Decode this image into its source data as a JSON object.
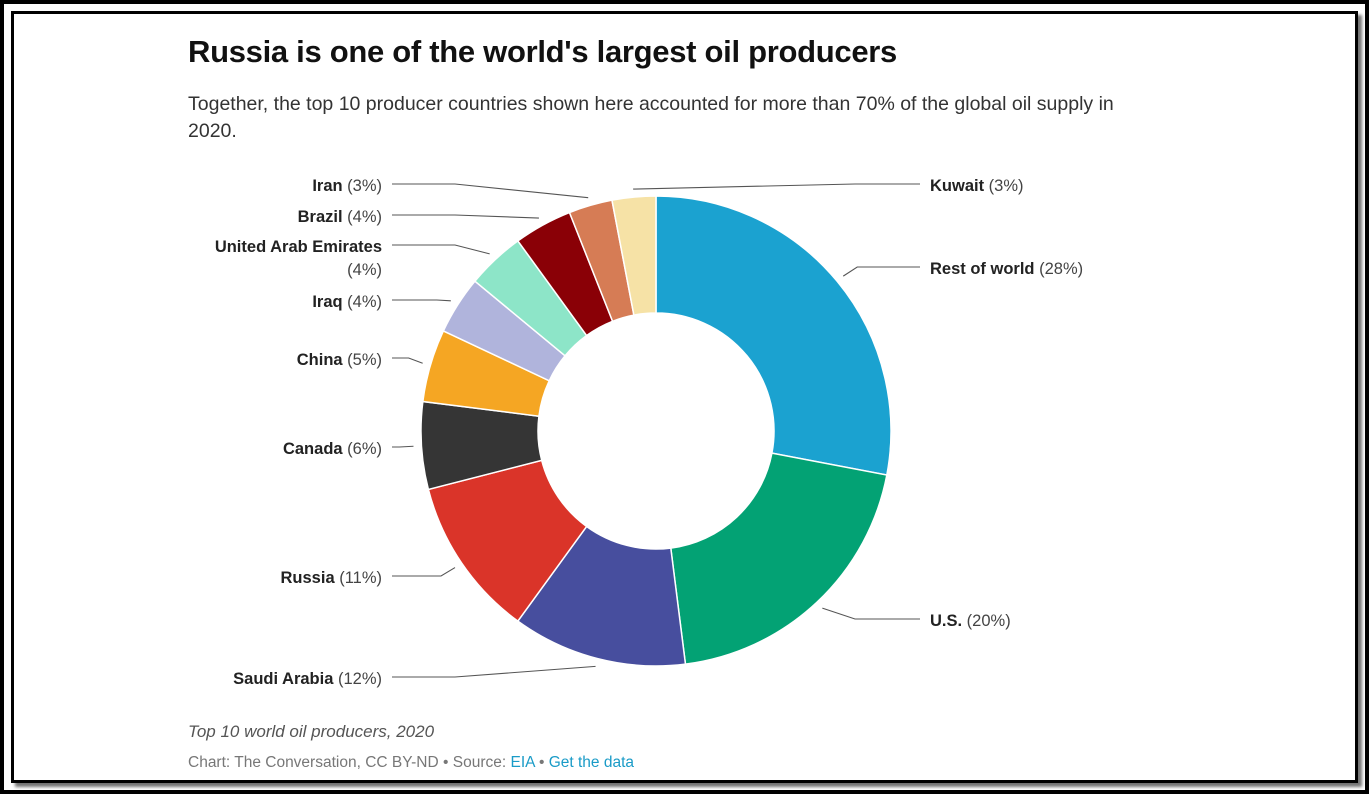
{
  "title": "Russia is one of the world's largest oil producers",
  "subtitle": "Together, the top 10 producer countries shown here accounted for more than 70% of the global oil supply in 2020.",
  "caption": "Top 10 world oil producers, 2020",
  "source": {
    "prefix": "Chart: The Conversation, CC BY-ND",
    "separator": "•",
    "source_label": "Source:",
    "source_link": "EIA",
    "data_link": "Get the data"
  },
  "chart_data": {
    "type": "pie",
    "donut": true,
    "slices": [
      {
        "label": "Rest of world",
        "value": 28,
        "display": "(28%)",
        "color": "#1ba2d0"
      },
      {
        "label": "U.S.",
        "value": 20,
        "display": "(20%)",
        "color": "#03a274"
      },
      {
        "label": "Saudi Arabia",
        "value": 12,
        "display": "(12%)",
        "color": "#474e9e"
      },
      {
        "label": "Russia",
        "value": 11,
        "display": "(11%)",
        "color": "#da3429"
      },
      {
        "label": "Canada",
        "value": 6,
        "display": "(6%)",
        "color": "#353535"
      },
      {
        "label": "China",
        "value": 5,
        "display": "(5%)",
        "color": "#f5a623"
      },
      {
        "label": "Iraq",
        "value": 4,
        "display": "(4%)",
        "color": "#b0b4dc"
      },
      {
        "label": "United Arab Emirates",
        "value": 4,
        "display": "(4%)",
        "color": "#8de5c8"
      },
      {
        "label": "Brazil",
        "value": 4,
        "display": "(4%)",
        "color": "#8a0006"
      },
      {
        "label": "Iran",
        "value": 3,
        "display": "(3%)",
        "color": "#d67c55"
      },
      {
        "label": "Kuwait",
        "value": 3,
        "display": "(3%)",
        "color": "#f6e2a6"
      }
    ]
  }
}
